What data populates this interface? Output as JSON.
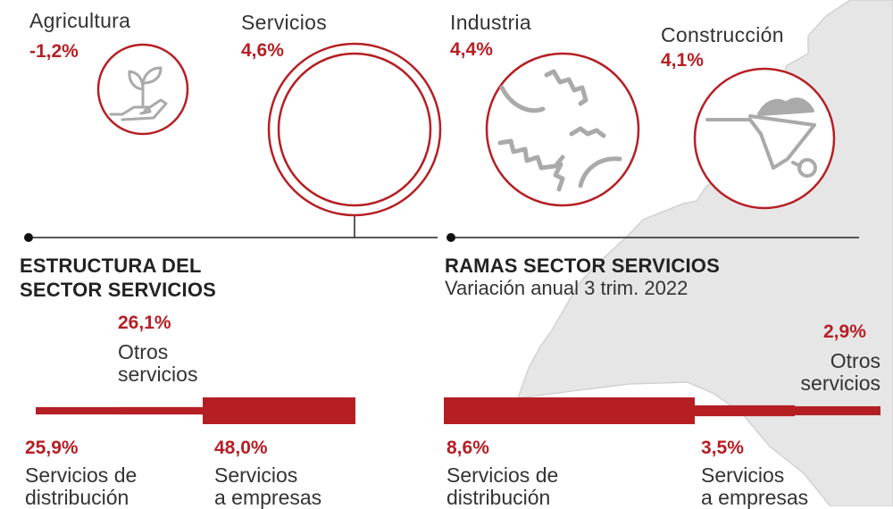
{
  "colors": {
    "accent": "#b51f24",
    "text": "#333333",
    "map_shading": "#e6e6e6"
  },
  "chart_data": [
    {
      "type": "bubble",
      "title": "",
      "categories": [
        "Agricultura",
        "Servicios",
        "Industria",
        "Construcción"
      ],
      "values": [
        -1.2,
        4.6,
        4.4,
        4.1
      ],
      "labels": [
        "-1,2%",
        "4,6%",
        "4,4%",
        "4,1%"
      ],
      "icons": [
        "plant-hand-icon",
        "",
        "gears-icon",
        "wheelbarrow-icon"
      ],
      "unit": "%"
    },
    {
      "type": "bar",
      "title": "ESTRUCTURA DEL SECTOR SERVICIOS",
      "categories": [
        "Servicios de distribución",
        "Otros servicios",
        "Servicios a empresas"
      ],
      "values": [
        25.9,
        26.1,
        48.0
      ],
      "labels": [
        "25,9%",
        "26,1%",
        "48,0%"
      ],
      "unit": "%"
    },
    {
      "type": "bar",
      "title": "RAMAS SECTOR SERVICIOS",
      "subtitle": "Variación anual 3 trim. 2022",
      "categories": [
        "Servicios de distribución",
        "Servicios a empresas",
        "Otros servicios"
      ],
      "values": [
        8.6,
        3.5,
        2.9
      ],
      "labels": [
        "8,6%",
        "3,5%",
        "2,9%"
      ],
      "unit": "%"
    }
  ],
  "sectors": [
    {
      "name": "Agricultura",
      "pct": "-1,2%"
    },
    {
      "name": "Servicios",
      "pct": "4,6%"
    },
    {
      "name": "Industria",
      "pct": "4,4%"
    },
    {
      "name": "Construcción",
      "pct": "4,1%"
    }
  ],
  "structure": {
    "title_line1": "ESTRUCTURA DEL",
    "title_line2": "SECTOR SERVICIOS",
    "items": [
      {
        "pct": "25,9%",
        "label_line1": "Servicios de",
        "label_line2": "distribución"
      },
      {
        "pct": "26,1%",
        "label_line1": "Otros",
        "label_line2": "servicios"
      },
      {
        "pct": "48,0%",
        "label_line1": "Servicios",
        "label_line2": "a empresas"
      }
    ]
  },
  "branches": {
    "title": "RAMAS SECTOR SERVICIOS",
    "subtitle": "Variación anual 3 trim. 2022",
    "items": [
      {
        "pct": "8,6%",
        "label_line1": "Servicios de",
        "label_line2": "distribución"
      },
      {
        "pct": "3,5%",
        "label_line1": "Servicios",
        "label_line2": "a empresas"
      },
      {
        "pct": "2,9%",
        "label_line1": "Otros",
        "label_line2": "servicios"
      }
    ]
  }
}
